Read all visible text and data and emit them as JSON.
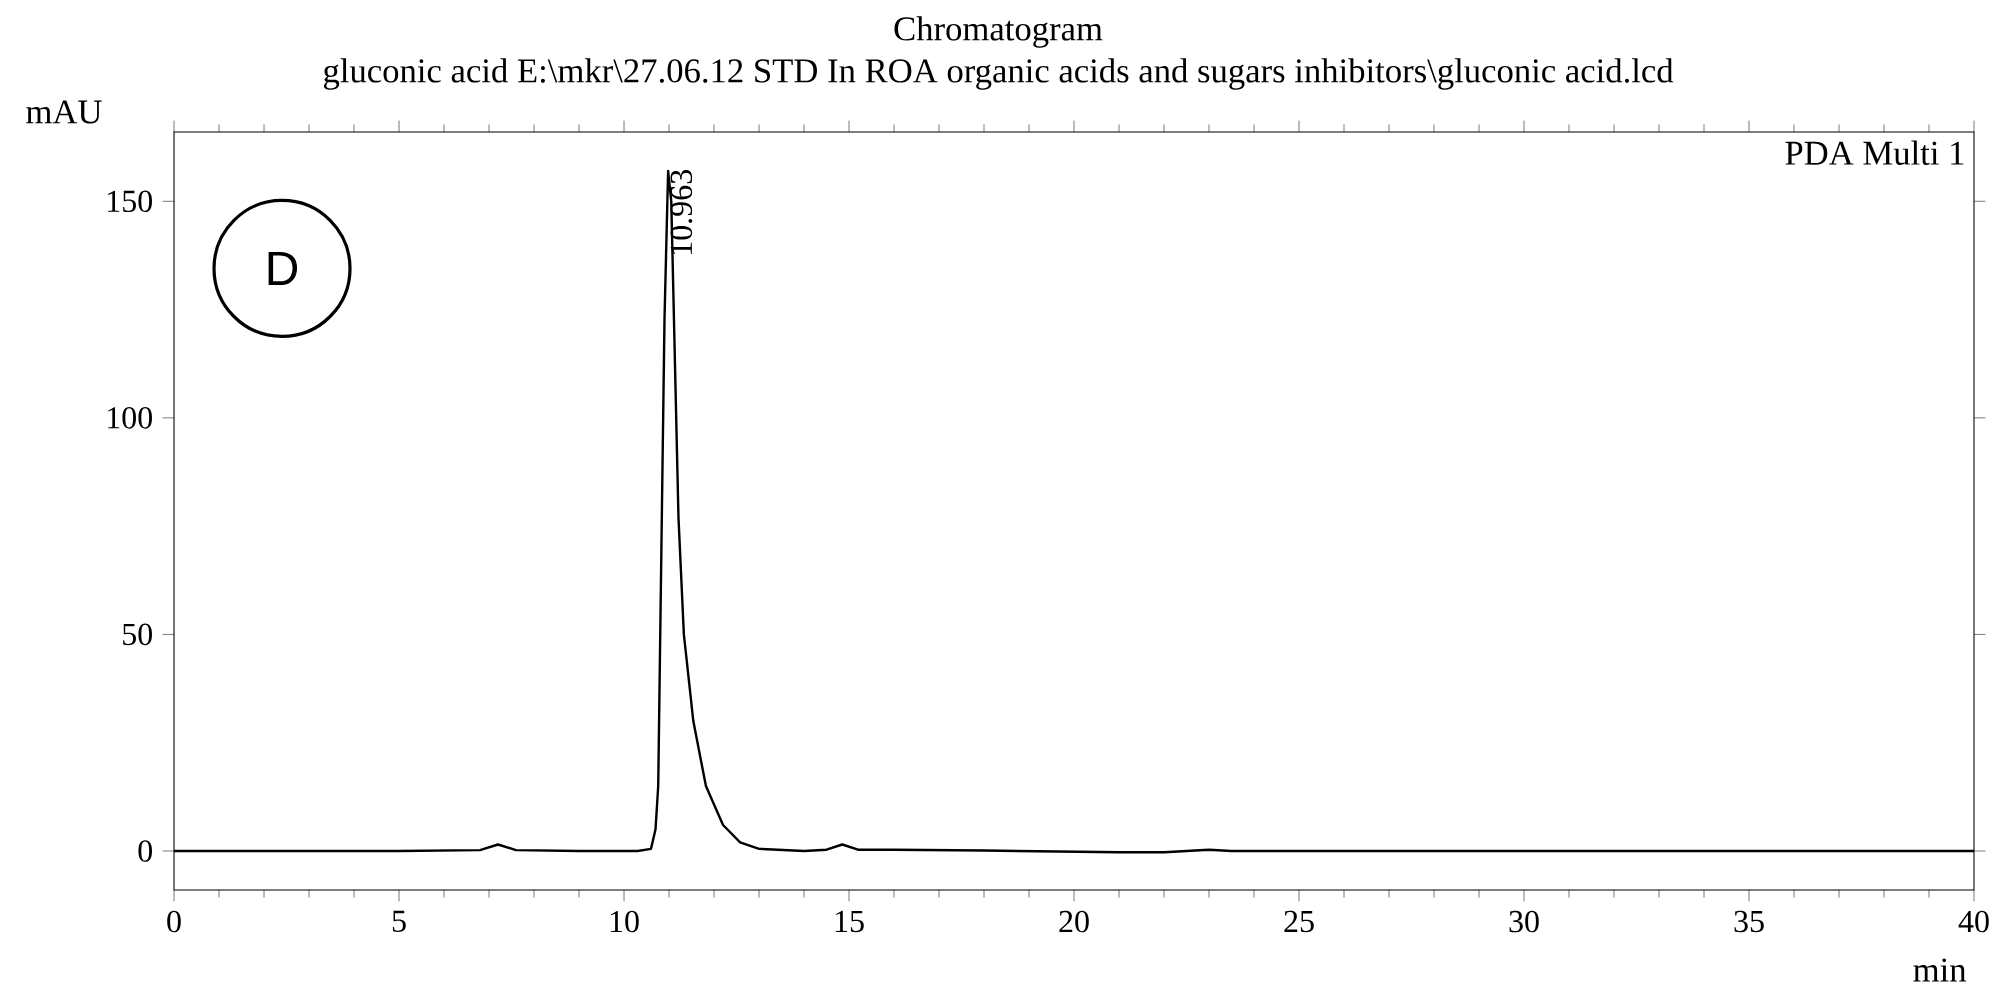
{
  "chart_data": {
    "type": "line",
    "title": "Chromatogram",
    "subtitle": "gluconic acid  E:\\mkr\\27.06.12 STD In ROA organic acids and sugars inhibitors\\gluconic acid.lcd",
    "xlabel": "min",
    "ylabel": "mAU",
    "series": [
      {
        "color": "#000000",
        "x": [
          0,
          5,
          6.8,
          7.2,
          7.6,
          9,
          10.3,
          10.6,
          10.7,
          10.76,
          10.84,
          10.9,
          10.98,
          11.05,
          11.21,
          11.33,
          11.54,
          11.82,
          12.2,
          12.58,
          13,
          14,
          14.5,
          14.85,
          15.2,
          16,
          18,
          21,
          22,
          23,
          23.5,
          25,
          30,
          35,
          40
        ],
        "values": [
          0,
          0,
          0.2,
          1.5,
          0.2,
          0,
          0,
          0.5,
          5,
          15,
          77,
          123,
          157,
          150,
          77,
          50,
          30,
          15,
          6,
          2,
          0.5,
          0,
          0.3,
          1.5,
          0.3,
          0.3,
          0.1,
          -0.3,
          -0.3,
          0.3,
          0,
          0,
          0,
          0,
          0
        ]
      }
    ],
    "xlim": [
      0,
      40
    ],
    "ylim": [
      -9,
      166
    ],
    "xticks": [
      0,
      5,
      10,
      15,
      20,
      25,
      30,
      35,
      40
    ],
    "yticks": [
      0,
      50,
      100,
      150
    ],
    "grid": false,
    "marker": "none",
    "line_style": "solid",
    "annotations": [
      {
        "text": "10.963",
        "x": 10.963,
        "y": 157
      },
      "PDA Multi 1",
      "D"
    ]
  }
}
